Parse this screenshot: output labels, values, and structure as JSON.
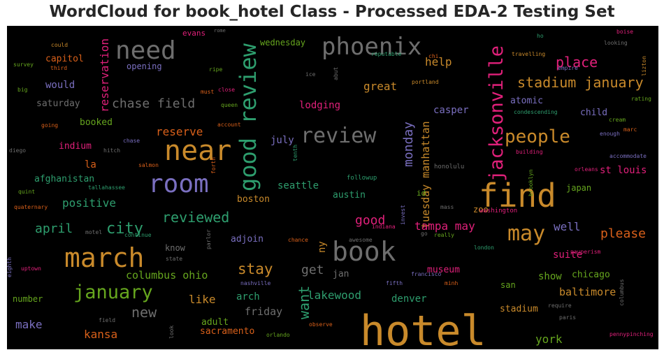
{
  "chart_data": {
    "type": "wordcloud",
    "title": "WordCloud for book_hotel Class - Processed EDA-2 Testing Set",
    "background": "#000000",
    "colormap": [
      "#c98a2b",
      "#6e6e6e",
      "#2e9e6e",
      "#7a6fc0",
      "#e0207a",
      "#66a61e",
      "#d9601a"
    ],
    "words": [
      {
        "text": "hotel",
        "weight": 60,
        "color": "#c98a2b",
        "vertical": false
      },
      {
        "text": "find",
        "weight": 46,
        "color": "#c98a2b",
        "vertical": false
      },
      {
        "text": "near",
        "weight": 40,
        "color": "#c98a2b",
        "vertical": false
      },
      {
        "text": "march",
        "weight": 38,
        "color": "#c98a2b",
        "vertical": false
      },
      {
        "text": "book",
        "weight": 38,
        "color": "#6e6e6e",
        "vertical": false
      },
      {
        "text": "need",
        "weight": 36,
        "color": "#6e6e6e",
        "vertical": false
      },
      {
        "text": "room",
        "weight": 36,
        "color": "#7a6fc0",
        "vertical": false
      },
      {
        "text": "phoenix",
        "weight": 34,
        "color": "#6e6e6e",
        "vertical": false
      },
      {
        "text": "good review",
        "weight": 32,
        "color": "#2e9e6e",
        "vertical": true
      },
      {
        "text": "review",
        "weight": 30,
        "color": "#6e6e6e",
        "vertical": false
      },
      {
        "text": "may",
        "weight": 30,
        "color": "#c98a2b",
        "vertical": false
      },
      {
        "text": "jacksonville",
        "weight": 27,
        "color": "#e0207a",
        "vertical": true
      },
      {
        "text": "january",
        "weight": 27,
        "color": "#66a61e",
        "vertical": false
      },
      {
        "text": "people",
        "weight": 26,
        "color": "#c98a2b",
        "vertical": false
      },
      {
        "text": "city",
        "weight": 22,
        "color": "#2e9e6e",
        "vertical": false
      },
      {
        "text": "stay",
        "weight": 21,
        "color": "#c98a2b",
        "vertical": false
      },
      {
        "text": "place",
        "weight": 20,
        "color": "#e0207a",
        "vertical": false
      },
      {
        "text": "want",
        "weight": 20,
        "color": "#2e9e6e",
        "vertical": true
      },
      {
        "text": "reviewed",
        "weight": 20,
        "color": "#2e9e6e",
        "vertical": false
      },
      {
        "text": "stadium january",
        "weight": 20,
        "color": "#c98a2b",
        "vertical": false
      },
      {
        "text": "new",
        "weight": 20,
        "color": "#6e6e6e",
        "vertical": false
      },
      {
        "text": "monday",
        "weight": 18,
        "color": "#7a6fc0",
        "vertical": true
      },
      {
        "text": "please",
        "weight": 18,
        "color": "#d9601a",
        "vertical": false
      },
      {
        "text": "get",
        "weight": 18,
        "color": "#6e6e6e",
        "vertical": false
      },
      {
        "text": "good",
        "weight": 18,
        "color": "#e0207a",
        "vertical": false
      },
      {
        "text": "april",
        "weight": 18,
        "color": "#2e9e6e",
        "vertical": false
      },
      {
        "text": "chase field",
        "weight": 18,
        "color": "#6e6e6e",
        "vertical": false
      },
      {
        "text": "reservation",
        "weight": 16,
        "color": "#e0207a",
        "vertical": true
      },
      {
        "text": "lakewood",
        "weight": 16,
        "color": "#2e9e6e",
        "vertical": false
      },
      {
        "text": "kansa",
        "weight": 16,
        "color": "#d9601a",
        "vertical": false
      },
      {
        "text": "make",
        "weight": 16,
        "color": "#7a6fc0",
        "vertical": false
      },
      {
        "text": "tuesday manhattan",
        "weight": 15,
        "color": "#c98a2b",
        "vertical": true
      },
      {
        "text": "tampa may",
        "weight": 16,
        "color": "#e0207a",
        "vertical": false
      },
      {
        "text": "like",
        "weight": 16,
        "color": "#c98a2b",
        "vertical": false
      },
      {
        "text": "york",
        "weight": 16,
        "color": "#66a61e",
        "vertical": false
      },
      {
        "text": "positive",
        "weight": 16,
        "color": "#2e9e6e",
        "vertical": false
      },
      {
        "text": "help",
        "weight": 16,
        "color": "#c98a2b",
        "vertical": false
      },
      {
        "text": "well",
        "weight": 16,
        "color": "#7a6fc0",
        "vertical": false
      },
      {
        "text": "reserve",
        "weight": 16,
        "color": "#d9601a",
        "vertical": false
      },
      {
        "text": "lodging",
        "weight": 14,
        "color": "#e0207a",
        "vertical": false
      },
      {
        "text": "st louis",
        "weight": 14,
        "color": "#e0207a",
        "vertical": false
      },
      {
        "text": "great",
        "weight": 16,
        "color": "#c98a2b",
        "vertical": false
      },
      {
        "text": "columbus ohio",
        "weight": 15,
        "color": "#66a61e",
        "vertical": false
      },
      {
        "text": "friday",
        "weight": 15,
        "color": "#6e6e6e",
        "vertical": false
      },
      {
        "text": "baltimore",
        "weight": 15,
        "color": "#c98a2b",
        "vertical": false
      },
      {
        "text": "suite",
        "weight": 14,
        "color": "#e0207a",
        "vertical": false
      },
      {
        "text": "casper",
        "weight": 14,
        "color": "#7a6fc0",
        "vertical": false
      },
      {
        "text": "ny",
        "weight": 14,
        "color": "#c98a2b",
        "vertical": true
      },
      {
        "text": "would",
        "weight": 14,
        "color": "#7a6fc0",
        "vertical": false
      },
      {
        "text": "seattle",
        "weight": 14,
        "color": "#2e9e6e",
        "vertical": false
      },
      {
        "text": "arch",
        "weight": 14,
        "color": "#2e9e6e",
        "vertical": false
      },
      {
        "text": "denver",
        "weight": 14,
        "color": "#2e9e6e",
        "vertical": false
      },
      {
        "text": "show",
        "weight": 14,
        "color": "#66a61e",
        "vertical": false
      },
      {
        "text": "chicago",
        "weight": 13,
        "color": "#66a61e",
        "vertical": false
      },
      {
        "text": "adult",
        "weight": 13,
        "color": "#66a61e",
        "vertical": false
      },
      {
        "text": "july",
        "weight": 14,
        "color": "#7a6fc0",
        "vertical": false
      },
      {
        "text": "la",
        "weight": 14,
        "color": "#d9601a",
        "vertical": false
      },
      {
        "text": "museum",
        "weight": 13,
        "color": "#e0207a",
        "vertical": false
      },
      {
        "text": "atomic",
        "weight": 13,
        "color": "#7a6fc0",
        "vertical": false
      },
      {
        "text": "child",
        "weight": 13,
        "color": "#7a6fc0",
        "vertical": false
      },
      {
        "text": "stadium",
        "weight": 13,
        "color": "#c98a2b",
        "vertical": false
      },
      {
        "text": "afghanistan",
        "weight": 13,
        "color": "#2e9e6e",
        "vertical": false
      },
      {
        "text": "capitol",
        "weight": 13,
        "color": "#d9601a",
        "vertical": false
      },
      {
        "text": "sacramento",
        "weight": 13,
        "color": "#d9601a",
        "vertical": false
      },
      {
        "text": "saturday",
        "weight": 13,
        "color": "#6e6e6e",
        "vertical": false
      },
      {
        "text": "booked",
        "weight": 13,
        "color": "#66a61e",
        "vertical": false
      },
      {
        "text": "adjoin",
        "weight": 13,
        "color": "#7a6fc0",
        "vertical": false
      },
      {
        "text": "austin",
        "weight": 13,
        "color": "#2e9e6e",
        "vertical": false
      },
      {
        "text": "boston",
        "weight": 13,
        "color": "#c98a2b",
        "vertical": false
      },
      {
        "text": "japan",
        "weight": 12,
        "color": "#66a61e",
        "vertical": false
      },
      {
        "text": "indium",
        "weight": 13,
        "color": "#e0207a",
        "vertical": false
      },
      {
        "text": "jan",
        "weight": 13,
        "color": "#6e6e6e",
        "vertical": false
      },
      {
        "text": "zoo",
        "weight": 12,
        "color": "#c98a2b",
        "vertical": false
      },
      {
        "text": "know",
        "weight": 12,
        "color": "#6e6e6e",
        "vertical": false
      },
      {
        "text": "san",
        "weight": 12,
        "color": "#66a61e",
        "vertical": false
      },
      {
        "text": "number",
        "weight": 12,
        "color": "#66a61e",
        "vertical": false
      },
      {
        "text": "wednesday",
        "weight": 12,
        "color": "#66a61e",
        "vertical": false
      },
      {
        "text": "opening",
        "weight": 12,
        "color": "#7a6fc0",
        "vertical": false
      },
      {
        "text": "evans",
        "weight": 11,
        "color": "#e0207a",
        "vertical": false
      },
      {
        "text": "id",
        "weight": 11,
        "color": "#66a61e",
        "vertical": false
      },
      {
        "text": "honolulu",
        "weight": 9,
        "color": "#6e6e6e",
        "vertical": false
      },
      {
        "text": "followup",
        "weight": 9,
        "color": "#2e9e6e",
        "vertical": false
      },
      {
        "text": "washington",
        "weight": 9,
        "color": "#e0207a",
        "vertical": false
      },
      {
        "text": "salmon",
        "weight": 8,
        "color": "#d9601a",
        "vertical": false
      },
      {
        "text": "chase",
        "weight": 8,
        "color": "#7a6fc0",
        "vertical": false
      },
      {
        "text": "hitch",
        "weight": 8,
        "color": "#6e6e6e",
        "vertical": false
      },
      {
        "text": "tallahassee",
        "weight": 8,
        "color": "#2e9e6e",
        "vertical": false
      },
      {
        "text": "quint",
        "weight": 8,
        "color": "#66a61e",
        "vertical": false
      },
      {
        "text": "quaternary",
        "weight": 8,
        "color": "#d9601a",
        "vertical": false
      },
      {
        "text": "diego",
        "weight": 8,
        "color": "#6e6e6e",
        "vertical": false
      },
      {
        "text": "going",
        "weight": 8,
        "color": "#d9601a",
        "vertical": false
      },
      {
        "text": "big",
        "weight": 8,
        "color": "#66a61e",
        "vertical": false
      },
      {
        "text": "survey",
        "weight": 8,
        "color": "#66a61e",
        "vertical": false
      },
      {
        "text": "third",
        "weight": 8,
        "color": "#d9601a",
        "vertical": false
      },
      {
        "text": "could",
        "weight": 8,
        "color": "#c98a2b",
        "vertical": false
      },
      {
        "text": "rome",
        "weight": 7,
        "color": "#6e6e6e",
        "vertical": false
      },
      {
        "text": "ripe",
        "weight": 8,
        "color": "#66a61e",
        "vertical": false
      },
      {
        "text": "must",
        "weight": 8,
        "color": "#d9601a",
        "vertical": false
      },
      {
        "text": "close",
        "weight": 8,
        "color": "#e0207a",
        "vertical": false
      },
      {
        "text": "queen",
        "weight": 8,
        "color": "#66a61e",
        "vertical": false
      },
      {
        "text": "account",
        "weight": 8,
        "color": "#d9601a",
        "vertical": false
      },
      {
        "text": "ice",
        "weight": 8,
        "color": "#6e6e6e",
        "vertical": false
      },
      {
        "text": "abut",
        "weight": 8,
        "color": "#6e6e6e",
        "vertical": true
      },
      {
        "text": "reputable",
        "weight": 8,
        "color": "#2e9e6e",
        "vertical": false
      },
      {
        "text": "chi",
        "weight": 8,
        "color": "#d9601a",
        "vertical": false
      },
      {
        "text": "portland",
        "weight": 8,
        "color": "#c98a2b",
        "vertical": false
      },
      {
        "text": "ho",
        "weight": 8,
        "color": "#2e9e6e",
        "vertical": false
      },
      {
        "text": "travelling",
        "weight": 8,
        "color": "#c98a2b",
        "vertical": false
      },
      {
        "text": "empire",
        "weight": 8,
        "color": "#7a6fc0",
        "vertical": false
      },
      {
        "text": "boise",
        "weight": 8,
        "color": "#e0207a",
        "vertical": false
      },
      {
        "text": "looking",
        "weight": 8,
        "color": "#6e6e6e",
        "vertical": false
      },
      {
        "text": "lizton",
        "weight": 8,
        "color": "#c98a2b",
        "vertical": true
      },
      {
        "text": "rating",
        "weight": 8,
        "color": "#66a61e",
        "vertical": false
      },
      {
        "text": "condescending",
        "weight": 8,
        "color": "#2e9e6e",
        "vertical": false
      },
      {
        "text": "cream",
        "weight": 8,
        "color": "#66a61e",
        "vertical": false
      },
      {
        "text": "marc",
        "weight": 8,
        "color": "#d9601a",
        "vertical": false
      },
      {
        "text": "enough",
        "weight": 8,
        "color": "#7a6fc0",
        "vertical": false
      },
      {
        "text": "building",
        "weight": 8,
        "color": "#e0207a",
        "vertical": false
      },
      {
        "text": "accommodate",
        "weight": 8,
        "color": "#7a6fc0",
        "vertical": false
      },
      {
        "text": "brooklyn",
        "weight": 8,
        "color": "#66a61e",
        "vertical": true
      },
      {
        "text": "orleans",
        "weight": 8,
        "color": "#e0207a",
        "vertical": false
      },
      {
        "text": "tenth",
        "weight": 8,
        "color": "#2e9e6e",
        "vertical": true
      },
      {
        "text": "forth",
        "weight": 8,
        "color": "#d9601a",
        "vertical": true
      },
      {
        "text": "mass",
        "weight": 8,
        "color": "#6e6e6e",
        "vertical": false
      },
      {
        "text": "invest",
        "weight": 8,
        "color": "#7a6fc0",
        "vertical": true
      },
      {
        "text": "indiana",
        "weight": 8,
        "color": "#e0207a",
        "vertical": false
      },
      {
        "text": "awesome",
        "weight": 8,
        "color": "#6e6e6e",
        "vertical": false
      },
      {
        "text": "go",
        "weight": 8,
        "color": "#6e6e6e",
        "vertical": false
      },
      {
        "text": "really",
        "weight": 8,
        "color": "#66a61e",
        "vertical": false
      },
      {
        "text": "chance",
        "weight": 8,
        "color": "#d9601a",
        "vertical": false
      },
      {
        "text": "continue",
        "weight": 8,
        "color": "#2e9e6e",
        "vertical": false
      },
      {
        "text": "motel",
        "weight": 8,
        "color": "#6e6e6e",
        "vertical": false
      },
      {
        "text": "parlor",
        "weight": 8,
        "color": "#6e6e6e",
        "vertical": true
      },
      {
        "text": "state",
        "weight": 8,
        "color": "#6e6e6e",
        "vertical": false
      },
      {
        "text": "london",
        "weight": 8,
        "color": "#2e9e6e",
        "vertical": false
      },
      {
        "text": "pauperism",
        "weight": 8,
        "color": "#e0207a",
        "vertical": false
      },
      {
        "text": "francisco",
        "weight": 8,
        "color": "#7a6fc0",
        "vertical": false
      },
      {
        "text": "nashville",
        "weight": 8,
        "color": "#7a6fc0",
        "vertical": false
      },
      {
        "text": "fifth",
        "weight": 8,
        "color": "#7a6fc0",
        "vertical": false
      },
      {
        "text": "minh",
        "weight": 8,
        "color": "#d9601a",
        "vertical": false
      },
      {
        "text": "uptown",
        "weight": 8,
        "color": "#e0207a",
        "vertical": false
      },
      {
        "text": "eighth",
        "weight": 8,
        "color": "#7a6fc0",
        "vertical": true
      },
      {
        "text": "field",
        "weight": 8,
        "color": "#6e6e6e",
        "vertical": false
      },
      {
        "text": "look",
        "weight": 8,
        "color": "#6e6e6e",
        "vertical": true
      },
      {
        "text": "observe",
        "weight": 8,
        "color": "#d9601a",
        "vertical": false
      },
      {
        "text": "orlando",
        "weight": 8,
        "color": "#66a61e",
        "vertical": false
      },
      {
        "text": "require",
        "weight": 8,
        "color": "#6e6e6e",
        "vertical": false
      },
      {
        "text": "paris",
        "weight": 8,
        "color": "#6e6e6e",
        "vertical": false
      },
      {
        "text": "columbus",
        "weight": 8,
        "color": "#6e6e6e",
        "vertical": true
      },
      {
        "text": "pennypinching",
        "weight": 8,
        "color": "#e0207a",
        "vertical": false
      }
    ]
  }
}
